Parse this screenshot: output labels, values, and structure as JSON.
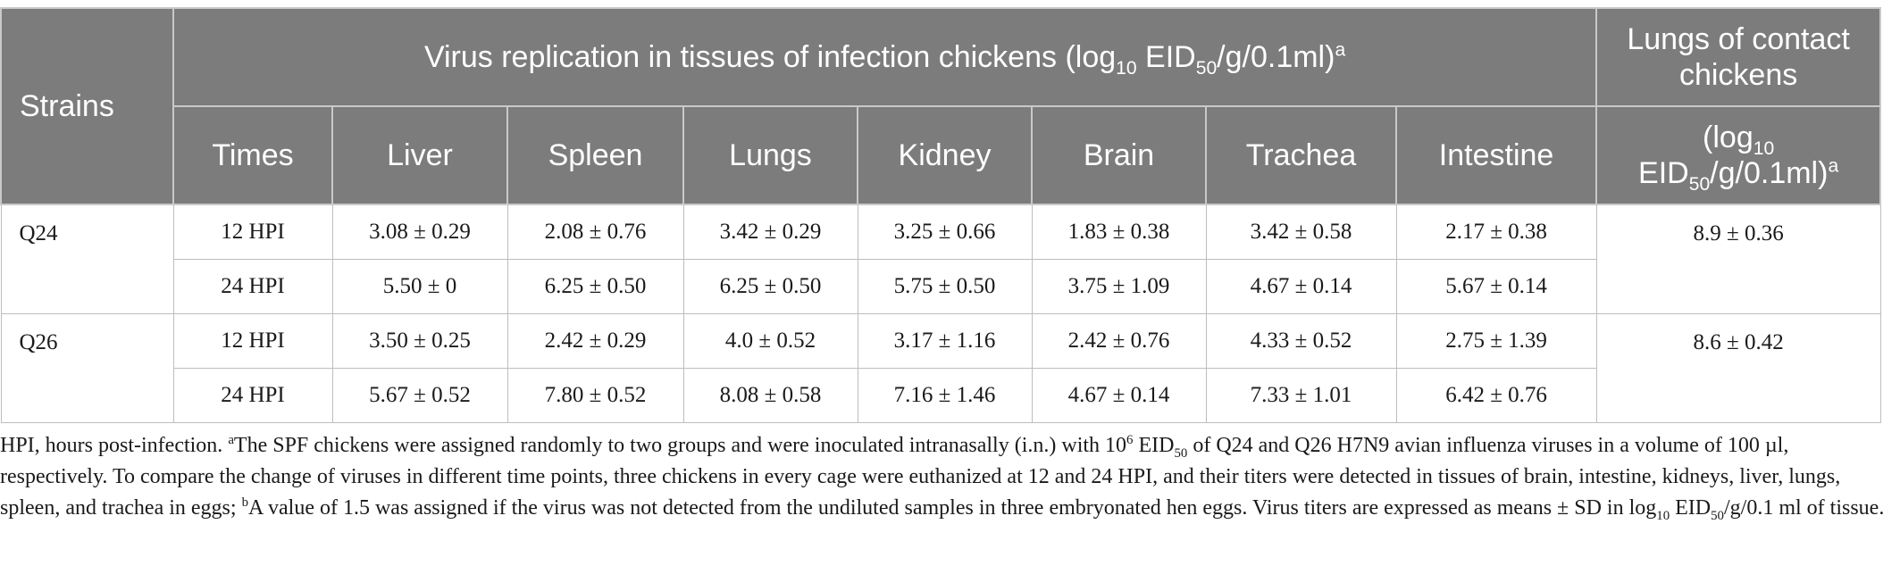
{
  "header": {
    "strains": "Strains",
    "virus_title_main": "Virus replication in tissues of infection chickens (log",
    "virus_title_sub": "10",
    "virus_title_mid": " EID",
    "virus_title_sub2": "50",
    "virus_title_end": "/g/0.1ml)",
    "virus_title_sup": "a",
    "contact_title": "Lungs of contact chickens",
    "contact_units_open": "(log",
    "contact_units_sub": "10",
    "contact_units_mid": "EID",
    "contact_units_sub2": "50",
    "contact_units_end": "/g/0.1ml)",
    "contact_units_sup": "a",
    "columns": [
      "Times",
      "Liver",
      "Spleen",
      "Lungs",
      "Kidney",
      "Brain",
      "Trachea",
      "Intestine"
    ]
  },
  "groups": [
    {
      "strain": "Q24",
      "contact": "8.9 ± 0.36",
      "rows": [
        {
          "time": "12 HPI",
          "values": [
            "3.08 ± 0.29",
            "2.08 ± 0.76",
            "3.42 ± 0.29",
            "3.25 ± 0.66",
            "1.83 ± 0.38",
            "3.42 ± 0.58",
            "2.17 ± 0.38"
          ]
        },
        {
          "time": "24 HPI",
          "values": [
            "5.50 ± 0",
            "6.25 ± 0.50",
            "6.25 ± 0.50",
            "5.75 ± 0.50",
            "3.75 ± 1.09",
            "4.67 ± 0.14",
            "5.67 ± 0.14"
          ]
        }
      ]
    },
    {
      "strain": "Q26",
      "contact": "8.6 ± 0.42",
      "rows": [
        {
          "time": "12 HPI",
          "values": [
            "3.50 ± 0.25",
            "2.42 ± 0.29",
            "4.0 ± 0.52",
            "3.17 ± 1.16",
            "2.42 ± 0.76",
            "4.33 ± 0.52",
            "2.75 ± 1.39"
          ]
        },
        {
          "time": "24 HPI",
          "values": [
            "5.67 ± 0.52",
            "7.80 ± 0.52",
            "8.08 ± 0.58",
            "7.16 ± 1.46",
            "4.67 ± 0.14",
            "7.33 ± 1.01",
            "6.42 ± 0.76"
          ]
        }
      ]
    }
  ],
  "footnote": {
    "p1": "HPI, hours post-infection. ",
    "a_mark": "a",
    "p2": "The SPF chickens were assigned randomly to two groups and were inoculated intranasally (i.n.) with 10",
    "exp": "6",
    "p3": " EID",
    "sub1": "50",
    "p4": " of Q24 and Q26 H7N9 avian influenza viruses in a volume of 100 µl, respectively. To compare the change of viruses in different time points, three chickens in every cage were euthanized at 12 and 24 HPI, and their titers were detected in tissues of brain, intestine, kidneys, liver, lungs, spleen, and trachea in eggs; ",
    "b_mark": "b",
    "p5": "A value of 1.5 was assigned if the virus was not detected from the undiluted samples in three embryonated hen eggs. Virus titers are expressed as means ± SD in log",
    "sub2": "10",
    "p6": " EID",
    "sub3": "50",
    "p7": "/g/0.1 ml of tissue."
  }
}
